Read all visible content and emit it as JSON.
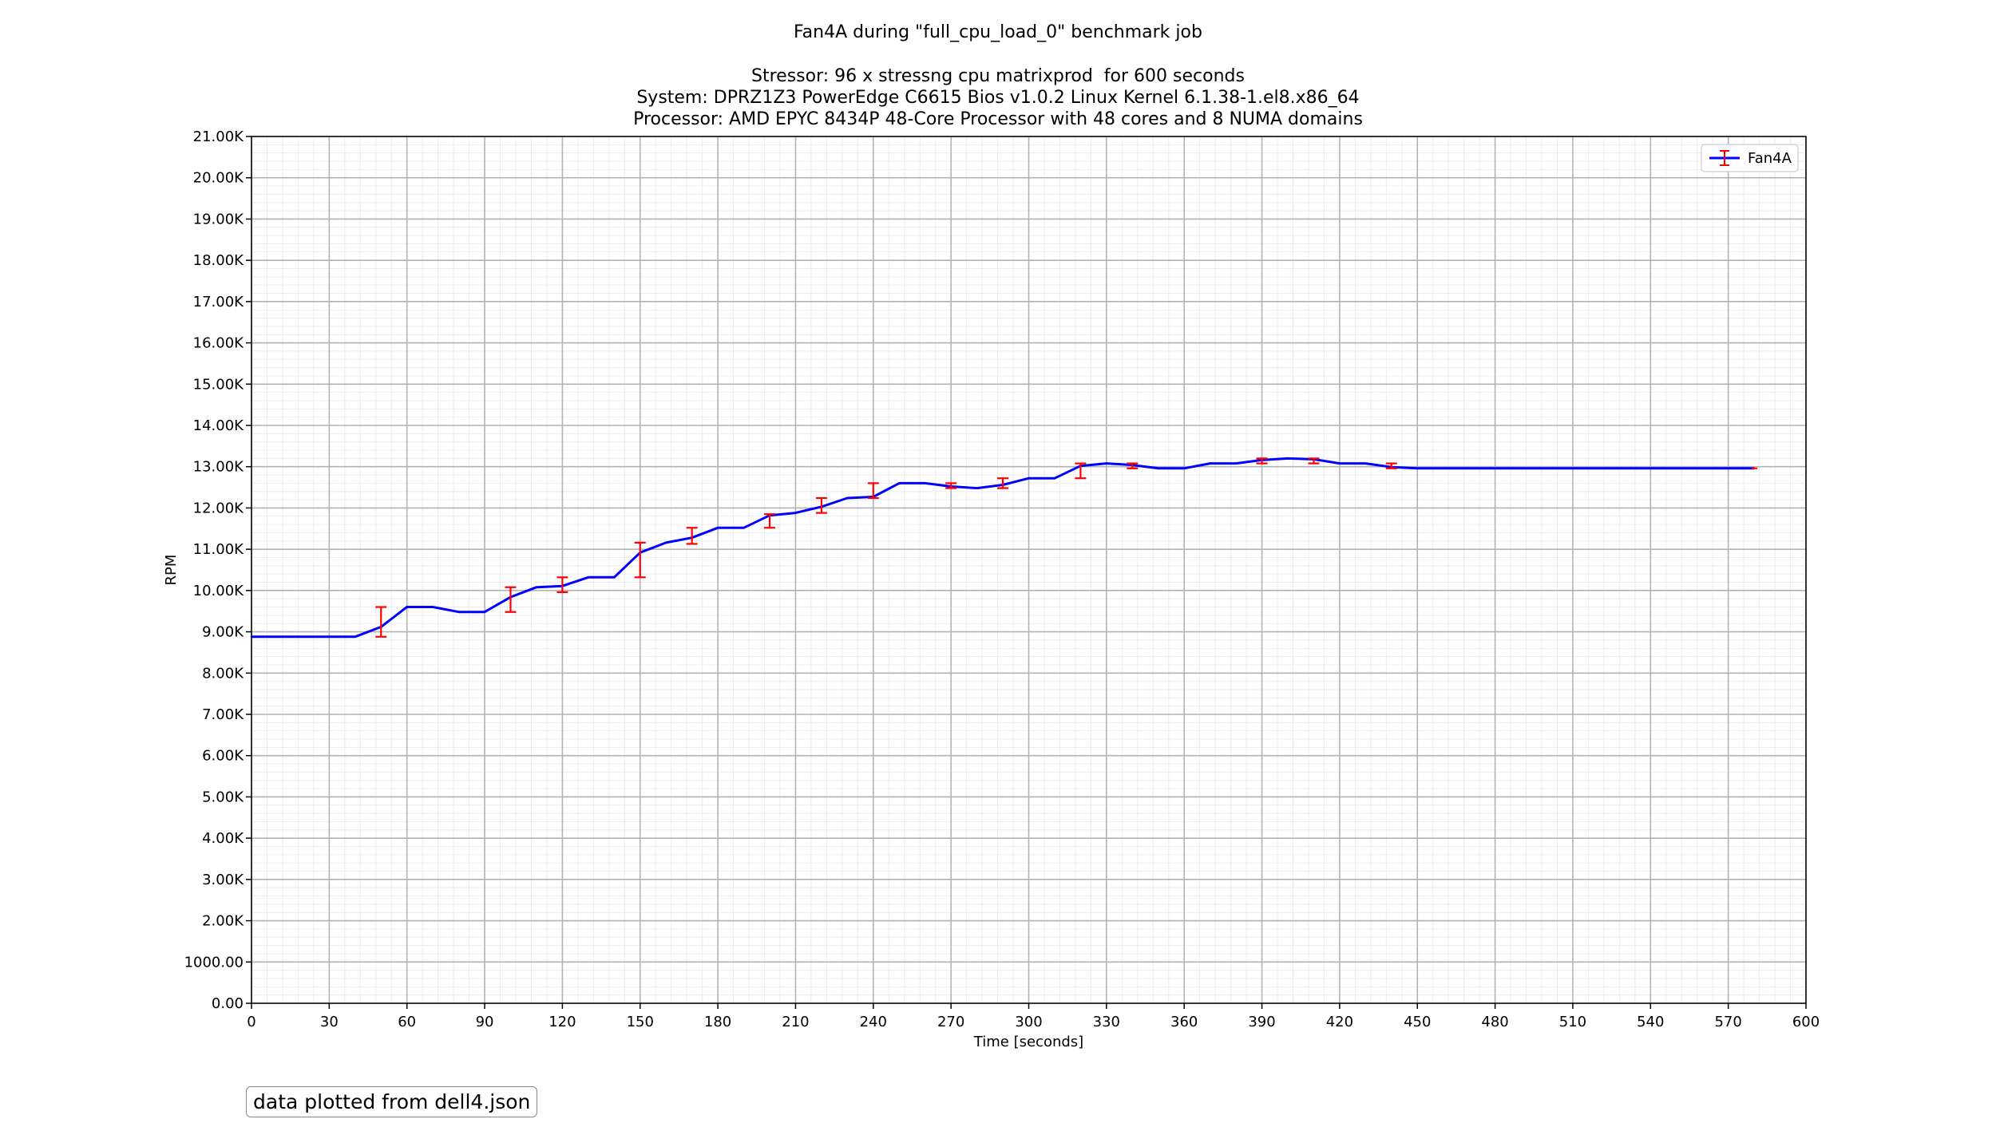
{
  "chart_data": {
    "type": "line",
    "title": "Fan4A during \"full_cpu_load_0\" benchmark job",
    "subtitle_lines": [
      "Stressor: 96 x stressng cpu matrixprod  for 600 seconds",
      "System: DPRZ1Z3 PowerEdge C6615 Bios v1.0.2 Linux Kernel 6.1.38-1.el8.x86_64",
      "Processor: AMD EPYC 8434P 48-Core Processor with 48 cores and 8 NUMA domains"
    ],
    "xlabel": "Time [seconds]",
    "ylabel": "RPM",
    "xlim": [
      0,
      600
    ],
    "ylim": [
      0,
      21000
    ],
    "x_ticks": [
      0,
      30,
      60,
      90,
      120,
      150,
      180,
      210,
      240,
      270,
      300,
      330,
      360,
      390,
      420,
      450,
      480,
      510,
      540,
      570,
      600
    ],
    "x_tick_labels": [
      "0",
      "30",
      "60",
      "90",
      "120",
      "150",
      "180",
      "210",
      "240",
      "270",
      "300",
      "330",
      "360",
      "390",
      "420",
      "450",
      "480",
      "510",
      "540",
      "570",
      "600"
    ],
    "y_ticks": [
      0,
      1000,
      2000,
      3000,
      4000,
      5000,
      6000,
      7000,
      8000,
      9000,
      10000,
      11000,
      12000,
      13000,
      14000,
      15000,
      16000,
      17000,
      18000,
      19000,
      20000,
      21000
    ],
    "y_tick_labels": [
      "0.00",
      "1000.00",
      "2.00K",
      "3.00K",
      "4.00K",
      "5.00K",
      "6.00K",
      "7.00K",
      "8.00K",
      "9.00K",
      "10.00K",
      "11.00K",
      "12.00K",
      "13.00K",
      "14.00K",
      "15.00K",
      "16.00K",
      "17.00K",
      "18.00K",
      "19.00K",
      "20.00K",
      "21.00K"
    ],
    "grid": true,
    "minor_grid": true,
    "legend_position": "top-right",
    "series": [
      {
        "name": "Fan4A",
        "color": "#0000ff",
        "error_color": "#ff0000",
        "x": [
          0,
          10,
          20,
          30,
          40,
          50,
          60,
          70,
          80,
          90,
          100,
          110,
          120,
          130,
          140,
          150,
          160,
          170,
          180,
          190,
          200,
          210,
          220,
          230,
          240,
          250,
          260,
          270,
          280,
          290,
          300,
          310,
          320,
          330,
          340,
          350,
          360,
          370,
          380,
          390,
          400,
          410,
          420,
          430,
          440,
          450,
          460,
          470,
          480,
          490,
          500,
          510,
          520,
          530,
          540,
          550,
          560,
          570,
          580
        ],
        "values": [
          8880,
          8880,
          8880,
          8880,
          8880,
          9120,
          9600,
          9600,
          9480,
          9480,
          9840,
          10080,
          10110,
          10320,
          10320,
          10920,
          11160,
          11280,
          11520,
          11520,
          11820,
          11880,
          12030,
          12240,
          12270,
          12600,
          12600,
          12520,
          12480,
          12560,
          12720,
          12720,
          13020,
          13080,
          13040,
          12960,
          12960,
          13080,
          13080,
          13160,
          13200,
          13180,
          13080,
          13080,
          12990,
          12960,
          12960,
          12960,
          12960,
          12960,
          12960,
          12960,
          12960,
          12960,
          12960,
          12960,
          12960,
          12960,
          12960
        ],
        "errors": [
          {
            "x": 50,
            "low": 8880,
            "high": 9600
          },
          {
            "x": 100,
            "low": 9480,
            "high": 10080
          },
          {
            "x": 120,
            "low": 9960,
            "high": 10320
          },
          {
            "x": 150,
            "low": 10320,
            "high": 11160
          },
          {
            "x": 170,
            "low": 11130,
            "high": 11520
          },
          {
            "x": 200,
            "low": 11520,
            "high": 11850
          },
          {
            "x": 220,
            "low": 11880,
            "high": 12240
          },
          {
            "x": 240,
            "low": 12240,
            "high": 12600
          },
          {
            "x": 270,
            "low": 12480,
            "high": 12600
          },
          {
            "x": 290,
            "low": 12480,
            "high": 12720
          },
          {
            "x": 320,
            "low": 12720,
            "high": 13080
          },
          {
            "x": 340,
            "low": 12960,
            "high": 13080
          },
          {
            "x": 390,
            "low": 13080,
            "high": 13200
          },
          {
            "x": 410,
            "low": 13080,
            "high": 13200
          },
          {
            "x": 440,
            "low": 12960,
            "high": 13080
          }
        ]
      }
    ]
  },
  "footnote": "data plotted from dell4.json"
}
